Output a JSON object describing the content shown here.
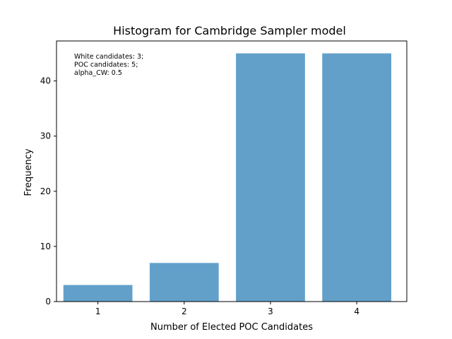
{
  "chart_data": {
    "type": "bar",
    "title": "Histogram for Cambridge Sampler model",
    "xlabel": "Number of Elected POC Candidates",
    "ylabel": "Frequency",
    "categories": [
      1,
      2,
      3,
      4
    ],
    "values": [
      3,
      7,
      45,
      45
    ],
    "ylim": [
      0,
      47.25
    ],
    "yticks": [
      0,
      10,
      20,
      30,
      40
    ],
    "xlim": [
      0.52,
      4.58
    ],
    "bar_width": 0.8,
    "bar_color": "#1f77b4",
    "bar_opacity": 0.7,
    "grid": false,
    "legend": "none",
    "annotation": {
      "lines": [
        "White candidates: 3;",
        "POC candidates: 5;",
        "alpha_CW: 0.5"
      ],
      "placement": "top-left"
    }
  }
}
